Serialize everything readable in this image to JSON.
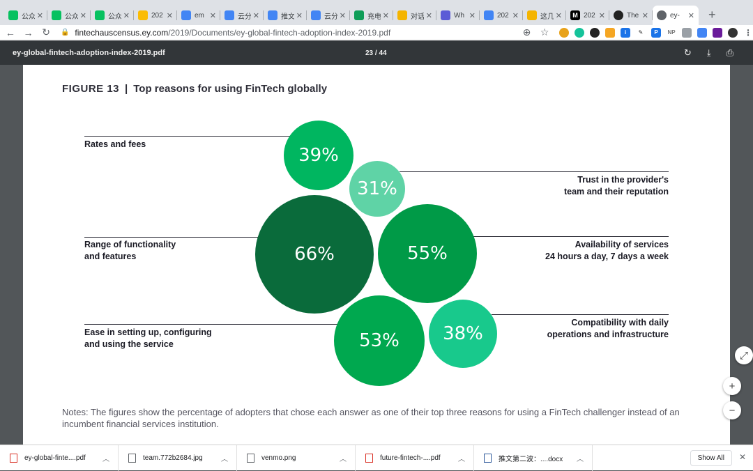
{
  "browser": {
    "tabs": [
      {
        "label": "公众",
        "color": "#07c160"
      },
      {
        "label": "公众",
        "color": "#07c160"
      },
      {
        "label": "公众",
        "color": "#07c160"
      },
      {
        "label": "202",
        "color": "#fbbc04"
      },
      {
        "label": "em",
        "color": "#4285f4"
      },
      {
        "label": "云分",
        "color": "#4285f4"
      },
      {
        "label": "推文",
        "color": "#4285f4"
      },
      {
        "label": "云分",
        "color": "#4285f4"
      },
      {
        "label": "充电",
        "color": "#0f9d58"
      },
      {
        "label": "对话",
        "color": "#f4b400"
      },
      {
        "label": "Wh",
        "color": "#5b5bd6"
      },
      {
        "label": "202",
        "color": "#4285f4"
      },
      {
        "label": "这几",
        "color": "#f4b400"
      },
      {
        "label": "202",
        "color": "#000000"
      },
      {
        "label": "The",
        "color": "#222222"
      },
      {
        "label": "ey-",
        "color": "#5f6368"
      }
    ],
    "url_host": "fintechauscensus.ey.com",
    "url_path": "/2019/Documents/ey-global-fintech-adoption-index-2019.pdf"
  },
  "pdf": {
    "filename": "ey-global-fintech-adoption-index-2019.pdf",
    "page_indicator": "23 / 44"
  },
  "figure": {
    "number": "FIGURE 13",
    "separator": "|",
    "title": "Top reasons for using FinTech globally",
    "notes": "Notes: The figures show the percentage of adopters that chose each answer as one of their top three reasons for using a FinTech challenger instead of an incumbent financial services institution."
  },
  "chart_data": {
    "type": "bubble",
    "title": "Top reasons for using FinTech globally",
    "unit": "%",
    "items": [
      {
        "reason": "Rates and fees",
        "value": 39,
        "label": "39%",
        "color": "#00b660"
      },
      {
        "reason": "Trust in the provider's team and their reputation",
        "value": 31,
        "label": "31%",
        "color": "#5fd3a6"
      },
      {
        "reason": "Range of functionality and features",
        "value": 66,
        "label": "66%",
        "color": "#0a6b3b"
      },
      {
        "reason": "Availability of services 24 hours a day, 7 days a week",
        "value": 55,
        "label": "55%",
        "color": "#009a47"
      },
      {
        "reason": "Ease in setting up, configuring and using the service",
        "value": 53,
        "label": "53%",
        "color": "#00a84f"
      },
      {
        "reason": "Compatibility with daily operations and infrastructure",
        "value": 38,
        "label": "38%",
        "color": "#18c98c"
      }
    ]
  },
  "labels": {
    "rates_fees": "Rates and fees",
    "trust_1": "Trust in the provider's",
    "trust_2": "team and their reputation",
    "range_1": "Range of functionality",
    "range_2": "and features",
    "avail_1": "Availability of services",
    "avail_2": "24 hours a day, 7 days a week",
    "ease_1": "Ease in setting up, configuring",
    "ease_2": "and using the service",
    "compat_1": "Compatibility with daily",
    "compat_2": "operations and infrastructure"
  },
  "downloads": {
    "items": [
      {
        "name": "ey-global-finte....pdf",
        "icon": "PDF"
      },
      {
        "name": "team.772b2684.jpg",
        "icon": "IMG"
      },
      {
        "name": "venmo.png",
        "icon": "IMG"
      },
      {
        "name": "future-fintech-....pdf",
        "icon": "PDF"
      },
      {
        "name": "推文第二波：....docx",
        "icon": "W"
      }
    ],
    "show_all": "Show All"
  }
}
